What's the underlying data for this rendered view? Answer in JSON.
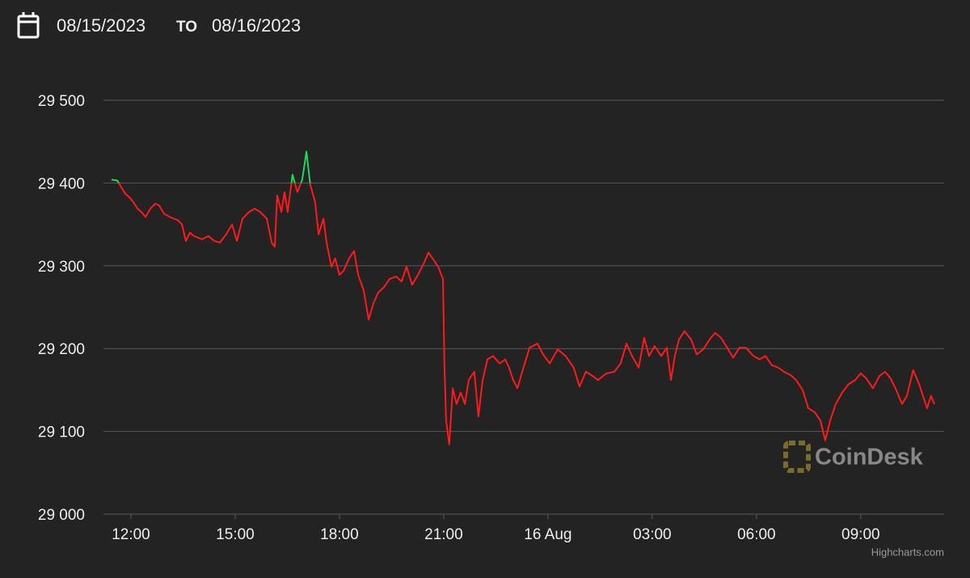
{
  "header": {
    "from": "08/15/2023",
    "separator": "TO",
    "to": "08/16/2023"
  },
  "watermark": "CoinDesk",
  "credits": "Highcharts.com",
  "chart_data": {
    "type": "line",
    "x": [
      11.44,
      11.61,
      11.72,
      11.84,
      11.95,
      12.07,
      12.19,
      12.3,
      12.42,
      12.56,
      12.7,
      12.81,
      12.95,
      13.12,
      13.35,
      13.47,
      13.58,
      13.7,
      13.81,
      14.05,
      14.23,
      14.4,
      14.56,
      14.74,
      14.91,
      15.05,
      15.21,
      15.4,
      15.56,
      15.72,
      15.91,
      16.05,
      16.14,
      16.21,
      16.33,
      16.42,
      16.51,
      16.65,
      16.79,
      16.93,
      17.05,
      17.16,
      17.3,
      17.4,
      17.54,
      17.63,
      17.77,
      17.88,
      18.0,
      18.12,
      18.28,
      18.42,
      18.54,
      18.7,
      18.84,
      18.98,
      19.12,
      19.28,
      19.44,
      19.63,
      19.79,
      19.93,
      20.09,
      20.26,
      20.44,
      20.56,
      20.68,
      20.84,
      20.98,
      21.02,
      21.07,
      21.16,
      21.26,
      21.37,
      21.49,
      21.61,
      21.72,
      21.88,
      22.0,
      22.12,
      22.26,
      22.42,
      22.61,
      22.77,
      22.88,
      23.0,
      23.12,
      23.26,
      23.47,
      23.7,
      23.86,
      24.05,
      24.28,
      24.51,
      24.74,
      24.91,
      25.09,
      25.28,
      25.44,
      25.68,
      25.91,
      26.09,
      26.26,
      26.42,
      26.61,
      26.77,
      26.91,
      27.07,
      27.26,
      27.42,
      27.54,
      27.65,
      27.77,
      27.93,
      28.12,
      28.28,
      28.47,
      28.65,
      28.81,
      28.98,
      29.16,
      29.33,
      29.51,
      29.7,
      29.91,
      30.09,
      30.26,
      30.44,
      30.63,
      30.79,
      30.98,
      31.14,
      31.33,
      31.49,
      31.68,
      31.84,
      31.98,
      32.12,
      32.28,
      32.47,
      32.65,
      32.84,
      33.0,
      33.16,
      33.35,
      33.54,
      33.7,
      33.86,
      34.0,
      34.19,
      34.33,
      34.51,
      34.68,
      34.79,
      34.91,
      35.02,
      35.12
    ],
    "series": [
      {
        "color": "#ff1a1a",
        "threshold": 29400,
        "threshold_color": "#1ed760",
        "values": [
          29404,
          29403,
          29395,
          29387,
          29383,
          29377,
          29369,
          29365,
          29359,
          29369,
          29375,
          29373,
          29363,
          29359,
          29355,
          29350,
          29330,
          29340,
          29336,
          29332,
          29336,
          29330,
          29328,
          29338,
          29350,
          29330,
          29357,
          29365,
          29369,
          29365,
          29357,
          29328,
          29323,
          29385,
          29365,
          29389,
          29365,
          29410,
          29389,
          29404,
          29438,
          29398,
          29377,
          29338,
          29357,
          29328,
          29299,
          29309,
          29289,
          29294,
          29309,
          29318,
          29289,
          29270,
          29235,
          29255,
          29268,
          29274,
          29284,
          29287,
          29281,
          29299,
          29277,
          29289,
          29304,
          29316,
          29309,
          29299,
          29284,
          29182,
          29113,
          29084,
          29152,
          29133,
          29147,
          29133,
          29162,
          29172,
          29118,
          29162,
          29187,
          29191,
          29182,
          29187,
          29177,
          29162,
          29152,
          29172,
          29201,
          29206,
          29193,
          29182,
          29199,
          29191,
          29177,
          29154,
          29172,
          29167,
          29162,
          29170,
          29172,
          29182,
          29206,
          29191,
          29177,
          29213,
          29191,
          29203,
          29191,
          29201,
          29162,
          29191,
          29211,
          29221,
          29211,
          29193,
          29199,
          29211,
          29219,
          29213,
          29201,
          29189,
          29201,
          29201,
          29191,
          29187,
          29191,
          29180,
          29177,
          29172,
          29168,
          29162,
          29150,
          29128,
          29123,
          29113,
          29089,
          29113,
          29133,
          29147,
          29157,
          29162,
          29170,
          29164,
          29152,
          29167,
          29172,
          29164,
          29152,
          29133,
          29143,
          29174,
          29157,
          29143,
          29128,
          29143,
          29133
        ]
      }
    ],
    "xlim": [
      11.21,
      35.4
    ],
    "xticks": [
      {
        "value": 12,
        "label": "12:00"
      },
      {
        "value": 15,
        "label": "15:00"
      },
      {
        "value": 18,
        "label": "18:00"
      },
      {
        "value": 21,
        "label": "21:00"
      },
      {
        "value": 24,
        "label": "16 Aug"
      },
      {
        "value": 27,
        "label": "03:00"
      },
      {
        "value": 30,
        "label": "06:00"
      },
      {
        "value": 33,
        "label": "09:00"
      }
    ],
    "ylim": [
      29000,
      29500
    ],
    "yticks": [
      {
        "value": 29000,
        "label": "29 000"
      },
      {
        "value": 29100,
        "label": "29 100"
      },
      {
        "value": 29200,
        "label": "29 200"
      },
      {
        "value": 29300,
        "label": "29 300"
      },
      {
        "value": 29400,
        "label": "29 400"
      },
      {
        "value": 29500,
        "label": "29 500"
      }
    ],
    "grid": true
  }
}
